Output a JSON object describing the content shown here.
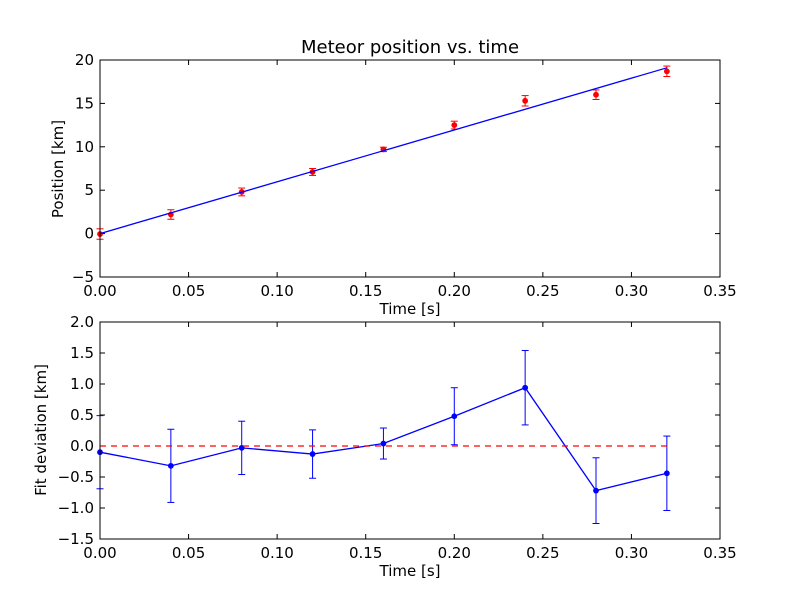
{
  "chart_data": [
    {
      "type": "scatter",
      "title": "Meteor position vs. time",
      "xlabel": "Time [s]",
      "ylabel": "Position [km]",
      "xlim": [
        0.0,
        0.35
      ],
      "ylim": [
        -5,
        20
      ],
      "xticks": [
        "0.00",
        "0.05",
        "0.10",
        "0.15",
        "0.20",
        "0.25",
        "0.30",
        "0.35"
      ],
      "yticks": [
        "−5",
        "0",
        "5",
        "10",
        "15",
        "20"
      ],
      "grid": false,
      "series": [
        {
          "kind": "errorbar-points",
          "color": "#ff0000",
          "x": [
            0.0,
            0.04,
            0.08,
            0.12,
            0.16,
            0.2,
            0.24,
            0.28,
            0.32
          ],
          "y": [
            -0.05,
            2.2,
            4.8,
            7.1,
            9.7,
            12.5,
            15.3,
            16.0,
            18.7
          ],
          "yerr": [
            0.6,
            0.55,
            0.45,
            0.4,
            0.25,
            0.45,
            0.6,
            0.55,
            0.6
          ]
        },
        {
          "kind": "line",
          "color": "#0000ff",
          "x": [
            0.0,
            0.32
          ],
          "y": [
            0.0,
            19.1
          ]
        }
      ]
    },
    {
      "type": "line",
      "title": "",
      "xlabel": "Time [s]",
      "ylabel": "Fit deviation [km]",
      "xlim": [
        0.0,
        0.35
      ],
      "ylim": [
        -1.5,
        2.0
      ],
      "xticks": [
        "0.00",
        "0.05",
        "0.10",
        "0.15",
        "0.20",
        "0.25",
        "0.30",
        "0.35"
      ],
      "yticks": [
        "−1.5",
        "−1.0",
        "−0.5",
        "0.0",
        "0.5",
        "1.0",
        "1.5",
        "2.0"
      ],
      "grid": false,
      "series": [
        {
          "kind": "errorbar-line",
          "color": "#0000ff",
          "x": [
            0.0,
            0.04,
            0.08,
            0.12,
            0.16,
            0.2,
            0.24,
            0.28,
            0.32
          ],
          "y": [
            -0.1,
            -0.32,
            -0.03,
            -0.13,
            0.04,
            0.48,
            0.94,
            -0.72,
            -0.44
          ],
          "yerr": [
            0.59,
            0.59,
            0.43,
            0.39,
            0.25,
            0.46,
            0.6,
            0.53,
            0.6
          ]
        },
        {
          "kind": "dashed-line",
          "color": "#ff0000",
          "x": [
            0.0,
            0.32
          ],
          "y": [
            0.0,
            0.0
          ]
        }
      ]
    }
  ]
}
